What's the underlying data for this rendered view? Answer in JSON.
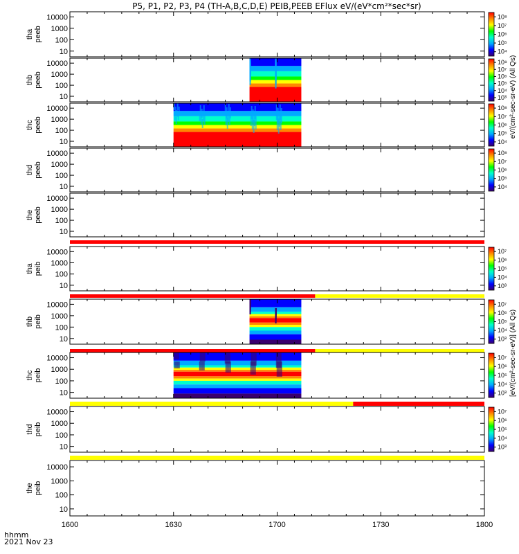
{
  "title": "P5, P1, P2, P3, P4 (TH-A,B,C,D,E) PEIB,PEEB EFlux eV/(eV*cm²*sec*sr)",
  "footer": {
    "time_label": "hhmm",
    "date_label": "2021 Nov 23"
  },
  "colorbar_labels": {
    "peeb": "eV/(cm²-sec-sr-eV) (All Qs)",
    "peib": "[eV/(cm²-sec-sr-eV)] (All Qs)"
  },
  "chart_data": {
    "type": "heatmap",
    "x_axis": {
      "label": "",
      "range": [
        "1600",
        "1800"
      ],
      "ticks": [
        "1600",
        "1630",
        "1700",
        "1730",
        "1800"
      ]
    },
    "y_scale": "log",
    "y_ticks": [
      "10",
      "100",
      "1000",
      "10000"
    ],
    "colorscale": [
      "#3a006e",
      "#0000ff",
      "#00aaff",
      "#00ffcc",
      "#00ff00",
      "#ffff00",
      "#ff8800",
      "#ff0000"
    ],
    "panels": [
      {
        "id": "tha-peeb",
        "probe": "tha",
        "product": "peeb",
        "data": null,
        "colorbar": {
          "ticks": [
            "10⁸",
            "10⁷",
            "10⁶",
            "10⁵",
            "10⁴"
          ],
          "max": 8.5,
          "min": 3.5
        }
      },
      {
        "id": "thb-peeb",
        "probe": "thb",
        "product": "peeb",
        "data": {
          "t_start": "1652",
          "t_end": "1707",
          "dominant_low_energy_color": "red",
          "high_energy_color": "blue"
        },
        "colorbar": {
          "ticks": [
            "10⁸",
            "10⁷",
            "10⁶",
            "10⁵",
            "10⁴",
            "10³"
          ],
          "max": 8.5,
          "min": 2.5
        }
      },
      {
        "id": "thc-peeb",
        "probe": "thc",
        "product": "peeb",
        "data": {
          "t_start": "1630",
          "t_end": "1707",
          "dominant_low_energy_color": "red",
          "high_energy_color": "blue"
        },
        "colorbar": {
          "ticks": [
            "10⁸",
            "10⁷",
            "10⁶",
            "10⁵",
            "10⁴"
          ],
          "max": 8.5,
          "min": 3.5
        }
      },
      {
        "id": "thd-peeb",
        "probe": "thd",
        "product": "peeb",
        "data": null,
        "colorbar": {
          "ticks": [
            "10⁸",
            "10⁷",
            "10⁶",
            "10⁵",
            "10⁴"
          ],
          "max": 8.5,
          "min": 3.5
        }
      },
      {
        "id": "the-peeb",
        "probe": "the",
        "product": "peeb",
        "data": null,
        "colorbar": null
      },
      {
        "id": "tha-peib",
        "probe": "tha",
        "product": "peib",
        "data": null,
        "colorbar": {
          "ticks": [
            "10⁷",
            "10⁶",
            "10⁵",
            "10⁴",
            "10³"
          ],
          "max": 7.5,
          "min": 2.5
        }
      },
      {
        "id": "thb-peib",
        "probe": "thb",
        "product": "peib",
        "data": {
          "t_start": "1652",
          "t_end": "1707",
          "dominant_low_energy_color": "blue",
          "high_energy_color": "red"
        },
        "colorbar": {
          "ticks": [
            "10⁷",
            "10⁶",
            "10⁵",
            "10⁴",
            "10³"
          ],
          "max": 7.5,
          "min": 2.5
        }
      },
      {
        "id": "thc-peib",
        "probe": "thc",
        "product": "peib",
        "data": {
          "t_start": "1630",
          "t_end": "1707",
          "dominant_low_energy_color": "blue",
          "high_energy_color": "red"
        },
        "colorbar": {
          "ticks": [
            "10⁷",
            "10⁶",
            "10⁵",
            "10⁴",
            "10³"
          ],
          "max": 7.5,
          "min": 2.5
        }
      },
      {
        "id": "thd-peib",
        "probe": "thd",
        "product": "peib",
        "data": null,
        "colorbar": {
          "ticks": [
            "10⁷",
            "10⁶",
            "10⁵",
            "10⁴",
            "10³"
          ],
          "max": 7.5,
          "min": 2.5
        }
      },
      {
        "id": "the-peib",
        "probe": "the",
        "product": "peib",
        "data": null,
        "colorbar": null
      }
    ],
    "mode_bars": [
      {
        "after_panel": "the-peeb",
        "segments": [
          {
            "from": "1600",
            "to": "1800",
            "color": "red"
          }
        ]
      },
      {
        "after_panel": "tha-peib",
        "segments": [
          {
            "from": "1600",
            "to": "1711",
            "color": "red"
          },
          {
            "from": "1711",
            "to": "1800",
            "color": "yellow"
          }
        ]
      },
      {
        "after_panel": "thb-peib",
        "segments": [
          {
            "from": "1600",
            "to": "1711",
            "color": "red"
          },
          {
            "from": "1711",
            "to": "1800",
            "color": "yellow"
          }
        ]
      },
      {
        "after_panel": "thc-peib",
        "segments": [
          {
            "from": "1600",
            "to": "1722",
            "color": "yellow"
          },
          {
            "from": "1722",
            "to": "1800",
            "color": "red"
          }
        ]
      },
      {
        "after_panel": "thd-peib",
        "segments": [
          {
            "from": "1600",
            "to": "1800",
            "color": "yellow"
          }
        ]
      }
    ]
  }
}
